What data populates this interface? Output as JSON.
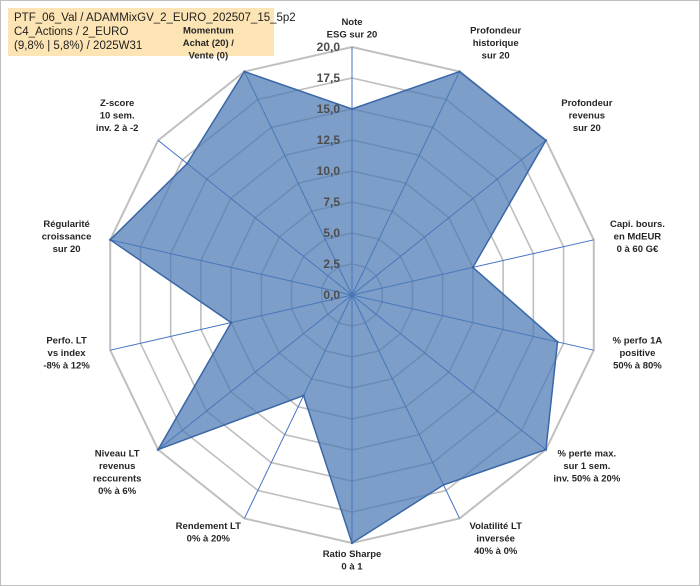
{
  "header": {
    "line1": "PTF_06_Val / ADAMMixGV_2_EURO_202507_15_5p2",
    "line2": "C4_Actions / 2_EURO",
    "line3": "(9,8% | 5,8%) / 2025W31"
  },
  "chart_data": {
    "type": "radar",
    "rmax": 20,
    "ticks": [
      "0,0",
      "2,5",
      "5,0",
      "7,5",
      "10,0",
      "12,5",
      "15,0",
      "17,5",
      "20,0"
    ],
    "axes": [
      {
        "label": [
          "Note",
          "ESG sur 20"
        ],
        "value": 15
      },
      {
        "label": [
          "Profondeur",
          "historique",
          "sur 20"
        ],
        "value": 20
      },
      {
        "label": [
          "Profondeur",
          "revenus",
          "sur 20"
        ],
        "value": 20
      },
      {
        "label": [
          "Capi. bours.",
          "en MdEUR",
          "0 à 60 G€"
        ],
        "value": 10
      },
      {
        "label": [
          "% perfo 1A",
          "positive",
          "50% à 80%"
        ],
        "value": 17
      },
      {
        "label": [
          "% perte max.",
          "sur 1 sem.",
          "inv. 50% à 20%"
        ],
        "value": 20
      },
      {
        "label": [
          "Volatilité LT",
          "inversée",
          "40% à 0%"
        ],
        "value": 17
      },
      {
        "label": [
          "Ratio Sharpe",
          "0 à 1"
        ],
        "value": 20
      },
      {
        "label": [
          "Rendement LT",
          "0% à 20%"
        ],
        "value": 9
      },
      {
        "label": [
          "Niveau LT",
          "revenus",
          "reccurents",
          "0% à 6%"
        ],
        "value": 20
      },
      {
        "label": [
          "Perfo. LT",
          "vs index",
          "-8% à 12%"
        ],
        "value": 10
      },
      {
        "label": [
          "Régularité",
          "croissance",
          "sur 20"
        ],
        "value": 20
      },
      {
        "label": [
          "Z-score",
          "10 sem.",
          "inv. 2 à -2"
        ],
        "value": 17
      },
      {
        "label": [
          "Momentum",
          "Achat (20) /",
          "Vente (0)"
        ],
        "value": 20
      }
    ],
    "colors": {
      "fill": "#4a78b4",
      "line": "#3a67a8",
      "grid": "#bfbfbf",
      "radial": "#4472c4",
      "highlight": "#fce4b4"
    }
  }
}
